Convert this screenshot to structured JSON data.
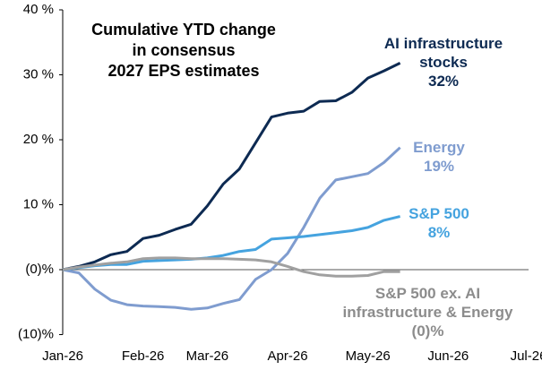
{
  "chart_data": {
    "type": "line",
    "title": "Cumulative YTD change\nin consensus\n2027 EPS estimates",
    "categories": [
      "Jan-26",
      null,
      null,
      null,
      null,
      "Feb-26",
      null,
      null,
      null,
      "Mar-26",
      null,
      null,
      null,
      null,
      "Apr-26",
      null,
      null,
      null,
      null,
      "May-26",
      null,
      null,
      null,
      null,
      "Jun-26",
      null,
      null,
      null,
      null,
      "Jul-26"
    ],
    "ylim": [
      -10,
      40
    ],
    "yticks": [
      {
        "value": 40,
        "label": "40 %"
      },
      {
        "value": 30,
        "label": "30 %"
      },
      {
        "value": 20,
        "label": "20 %"
      },
      {
        "value": 10,
        "label": "10 %"
      },
      {
        "value": 0,
        "label": "(0)%"
      },
      {
        "value": -10,
        "label": "(10)%"
      }
    ],
    "grid": false,
    "series": [
      {
        "name": "AI infrastructure\nstocks",
        "end_label": "32%",
        "color": "#0d2a52",
        "values": [
          0,
          0.5,
          1.2,
          2.3,
          2.8,
          4.8,
          5.3,
          6.2,
          7.0,
          9.8,
          13.2,
          15.5,
          19.5,
          23.5,
          24.1,
          24.4,
          25.9,
          26.0,
          27.3,
          29.5,
          30.6,
          31.8,
          null,
          null,
          null,
          null,
          null,
          null,
          null,
          null
        ]
      },
      {
        "name": "Energy",
        "end_label": "19%",
        "color": "#7f9ccf",
        "values": [
          0,
          -0.5,
          -3.0,
          -4.7,
          -5.4,
          -5.6,
          -5.7,
          -5.8,
          -6.1,
          -5.9,
          -5.2,
          -4.6,
          -1.5,
          0,
          2.5,
          6.5,
          11.0,
          13.8,
          14.3,
          14.8,
          16.5,
          18.8,
          null,
          null,
          null,
          null,
          null,
          null,
          null,
          null
        ]
      },
      {
        "name": "S&P 500",
        "end_label": "8%",
        "color": "#45a3df",
        "values": [
          0,
          0.3,
          0.6,
          0.8,
          0.8,
          1.3,
          1.4,
          1.5,
          1.6,
          1.8,
          2.2,
          2.8,
          3.1,
          4.7,
          4.9,
          5.1,
          5.4,
          5.7,
          6.0,
          6.5,
          7.6,
          8.2,
          null,
          null,
          null,
          null,
          null,
          null,
          null,
          null
        ]
      },
      {
        "name": "S&P 500 ex. AI\ninfrastructure & Energy",
        "end_label": "(0)%",
        "color": "#a0a0a0",
        "values": [
          0,
          0.4,
          0.7,
          1.0,
          1.2,
          1.7,
          1.8,
          1.8,
          1.7,
          1.7,
          1.7,
          1.6,
          1.5,
          1.2,
          0.5,
          -0.3,
          -0.8,
          -1.0,
          -1.0,
          -0.9,
          -0.3,
          -0.3,
          null,
          null,
          null,
          null,
          null,
          null,
          null,
          null
        ]
      }
    ]
  }
}
